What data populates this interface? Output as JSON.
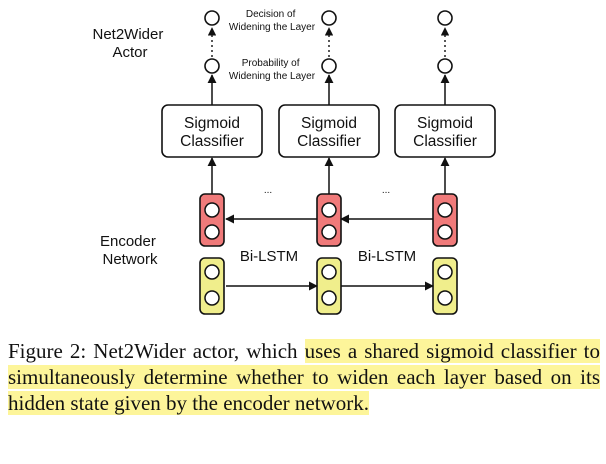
{
  "labels": {
    "actor": [
      "Net2Wider",
      "Actor"
    ],
    "decision": [
      "Decision of",
      "Widening the Layer"
    ],
    "probability": [
      "Probability of",
      "Widening the Layer"
    ],
    "classifier": [
      "Sigmoid",
      "Classifier"
    ],
    "encoder": [
      "Encoder",
      "Network"
    ],
    "bilstm": "Bi-LSTM",
    "ellipsis": "..."
  },
  "colors": {
    "forward_cell": "#f0ee8c",
    "backward_cell": "#f07a7a",
    "stroke": "#111111",
    "highlight": "#fdf59a"
  },
  "caption": {
    "plain": "Figure 2: Net2Wider actor, which ",
    "highlighted": "uses a shared sigmoid classifier to simultaneously determine whether to widen each layer based on its hidden state given by the encoder network",
    "end": "."
  }
}
